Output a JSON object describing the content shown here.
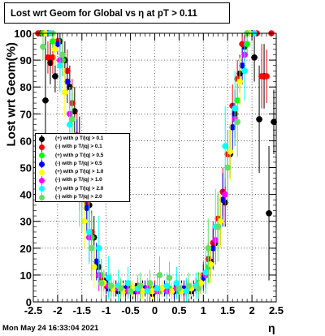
{
  "title": "Lost wrt Geom for Global vs  η at pT > 0.11",
  "footer": "Mon May 24 16:33:04 2021",
  "chart_data": {
    "type": "scatter",
    "xlabel": "η",
    "ylabel": "Lost wrt Geom(%)",
    "xlim": [
      -2.5,
      2.5
    ],
    "ylim": [
      0,
      100
    ],
    "x_ticks": [
      "-2.5",
      "-2",
      "-1.5",
      "-1",
      "-0.5",
      "0",
      "0.5",
      "1",
      "1.5",
      "2",
      "2.5"
    ],
    "y_ticks": [
      "0",
      "10",
      "20",
      "30",
      "40",
      "50",
      "60",
      "70",
      "80",
      "90",
      "100"
    ],
    "grid": true,
    "legend_position": "left-middle",
    "series": [
      {
        "name": "(+) with p T/|q| > 0.1",
        "color": "#000000",
        "x": [
          -2.35,
          -2.25,
          -2.15,
          -2.05,
          -1.95,
          -1.85,
          -1.75,
          -1.65,
          -1.55,
          -1.45,
          -1.35,
          -1.25,
          -1.15,
          -1.05,
          -0.95,
          -0.85,
          -0.75,
          -0.65,
          -0.55,
          -0.45,
          -0.35,
          -0.25,
          -0.15,
          -0.05,
          0.05,
          0.15,
          0.25,
          0.35,
          0.45,
          0.55,
          0.65,
          0.75,
          0.85,
          0.95,
          1.05,
          1.15,
          1.25,
          1.35,
          1.45,
          1.55,
          1.65,
          1.75,
          1.85,
          1.95,
          2.05,
          2.15,
          2.25,
          2.35,
          2.45
        ],
        "y": [
          100,
          75,
          89,
          84,
          97,
          90,
          80,
          71,
          60,
          48,
          36,
          24,
          13,
          8,
          5,
          5,
          4,
          5,
          5,
          4,
          6,
          5,
          5,
          3,
          5,
          5,
          4,
          4,
          5,
          5,
          5,
          4,
          6,
          7,
          10,
          15,
          22,
          30,
          37,
          55,
          70,
          85,
          95,
          100,
          91,
          68,
          84,
          33,
          67
        ],
        "yerr": [
          0,
          25,
          8,
          6,
          4,
          7,
          8,
          9,
          9,
          9,
          8,
          8,
          6,
          4,
          3,
          3,
          3,
          3,
          3,
          3,
          3,
          3,
          3,
          3,
          3,
          3,
          3,
          3,
          3,
          3,
          3,
          3,
          3,
          4,
          5,
          6,
          8,
          9,
          9,
          9,
          9,
          7,
          5,
          0,
          9,
          20,
          12,
          25,
          12
        ]
      },
      {
        "name": "(-) with p T/|q| > 0.1",
        "color": "#ff0000",
        "x": [
          -2.4,
          -2.3,
          -2.2,
          -2.1,
          -2.0,
          -1.9,
          -1.8,
          -1.7,
          -1.6,
          -1.5,
          -1.4,
          -1.3,
          -1.2,
          -1.1,
          -1.0,
          -0.9,
          -0.8,
          -0.7,
          -0.6,
          -0.5,
          -0.4,
          -0.3,
          -0.2,
          -0.1,
          0.0,
          0.1,
          0.2,
          0.3,
          0.4,
          0.5,
          0.6,
          0.7,
          0.8,
          0.9,
          1.0,
          1.1,
          1.2,
          1.3,
          1.4,
          1.5,
          1.6,
          1.7,
          1.8,
          1.9,
          2.0,
          2.1,
          2.2,
          2.3,
          2.4
        ],
        "y": [
          100,
          100,
          91,
          91,
          97,
          92,
          86,
          74,
          62,
          50,
          37,
          26,
          15,
          9,
          6,
          5,
          5,
          5,
          4,
          5,
          4,
          5,
          5,
          4,
          5,
          4,
          5,
          5,
          4,
          5,
          4,
          5,
          5,
          7,
          10,
          16,
          22,
          31,
          41,
          55,
          73,
          83,
          96,
          100,
          100,
          100,
          84,
          84,
          100
        ],
        "yerr": [
          0,
          0,
          6,
          6,
          3,
          5,
          8,
          9,
          9,
          9,
          8,
          8,
          6,
          4,
          3,
          3,
          3,
          3,
          3,
          3,
          3,
          3,
          3,
          3,
          3,
          3,
          3,
          3,
          3,
          3,
          3,
          3,
          3,
          4,
          5,
          6,
          8,
          9,
          9,
          9,
          8,
          7,
          4,
          0,
          0,
          0,
          12,
          10,
          0
        ]
      },
      {
        "name": "(+) with p T/|q| > 0.5",
        "color": "#00ff00",
        "x": [
          -2.3,
          -2.1,
          -1.9,
          -1.7,
          -1.5,
          -1.3,
          -1.1,
          -0.9,
          -0.7,
          -0.5,
          -0.3,
          -0.1,
          0.1,
          0.3,
          0.5,
          0.7,
          0.9,
          1.1,
          1.3,
          1.5,
          1.7,
          1.9
        ],
        "y": [
          100,
          97,
          90,
          68,
          45,
          24,
          10,
          6,
          5,
          4,
          4,
          5,
          4,
          5,
          4,
          5,
          7,
          13,
          28,
          50,
          75,
          96
        ],
        "yerr": [
          0,
          3,
          6,
          10,
          10,
          9,
          6,
          4,
          3,
          3,
          3,
          3,
          3,
          3,
          3,
          3,
          4,
          6,
          9,
          10,
          9,
          4
        ]
      },
      {
        "name": "(-) with p T/|q| > 0.5",
        "color": "#0000ff",
        "x": [
          -2.2,
          -2.0,
          -1.8,
          -1.6,
          -1.4,
          -1.2,
          -1.0,
          -0.8,
          -0.6,
          -0.4,
          -0.2,
          0.0,
          0.2,
          0.4,
          0.6,
          0.8,
          1.0,
          1.2,
          1.4,
          1.6,
          1.8,
          2.0
        ],
        "y": [
          100,
          96,
          82,
          58,
          35,
          15,
          7,
          5,
          5,
          4,
          5,
          4,
          5,
          4,
          5,
          5,
          9,
          20,
          38,
          65,
          88,
          100
        ],
        "yerr": [
          0,
          4,
          8,
          10,
          9,
          7,
          4,
          3,
          3,
          3,
          3,
          3,
          3,
          3,
          3,
          3,
          5,
          8,
          10,
          9,
          7,
          0
        ]
      },
      {
        "name": "(+) with p T/|q| > 1.0",
        "color": "#ffff00",
        "x": [
          -2.25,
          -2.05,
          -1.85,
          -1.65,
          -1.45,
          -1.25,
          -1.05,
          -0.85,
          -0.65,
          -0.45,
          -0.25,
          -0.05,
          0.15,
          0.35,
          0.55,
          0.75,
          0.95,
          1.15,
          1.35,
          1.55,
          1.75,
          1.95
        ],
        "y": [
          100,
          94,
          78,
          52,
          30,
          13,
          7,
          5,
          4,
          5,
          4,
          4,
          5,
          4,
          4,
          5,
          7,
          14,
          30,
          56,
          82,
          100
        ],
        "yerr": [
          0,
          6,
          9,
          11,
          10,
          8,
          5,
          4,
          3,
          3,
          3,
          3,
          3,
          3,
          3,
          3,
          4,
          7,
          10,
          11,
          9,
          0
        ]
      },
      {
        "name": "(-) with p T/|q| > 1.0",
        "color": "#ff00ff",
        "x": [
          -2.15,
          -1.95,
          -1.75,
          -1.55,
          -1.35,
          -1.15,
          -0.95,
          -0.75,
          -0.55,
          -0.35,
          -0.15,
          0.05,
          0.25,
          0.45,
          0.65,
          0.85,
          1.05,
          1.25,
          1.45,
          1.65,
          1.85,
          2.05
        ],
        "y": [
          100,
          90,
          70,
          45,
          24,
          10,
          6,
          5,
          4,
          4,
          5,
          4,
          4,
          5,
          4,
          6,
          10,
          23,
          40,
          68,
          92,
          100
        ],
        "yerr": [
          0,
          7,
          10,
          11,
          9,
          6,
          4,
          3,
          3,
          3,
          3,
          3,
          3,
          3,
          3,
          3,
          5,
          9,
          11,
          10,
          6,
          0
        ]
      },
      {
        "name": "(+) with p T/|q| > 2.0",
        "color": "#00ffff",
        "x": [
          -2.15,
          -1.95,
          -1.75,
          -1.55,
          -1.35,
          -1.15,
          -0.95,
          -0.75,
          -0.55,
          -0.35,
          -0.15,
          0.05,
          0.25,
          0.45,
          0.65,
          0.85,
          1.05,
          1.25,
          1.45,
          1.65,
          1.85,
          2.05
        ],
        "y": [
          100,
          88,
          66,
          42,
          26,
          20,
          9,
          6,
          7,
          5,
          4,
          5,
          6,
          7,
          4,
          6,
          11,
          28,
          58,
          72,
          86,
          100
        ],
        "yerr": [
          0,
          10,
          14,
          14,
          12,
          12,
          8,
          6,
          6,
          5,
          5,
          5,
          5,
          6,
          5,
          5,
          8,
          14,
          15,
          14,
          11,
          0
        ]
      },
      {
        "name": "(-) with p T/|q| > 2.0",
        "color": "#66dd66",
        "x": [
          -2.3,
          -2.1,
          -1.9,
          -1.7,
          -1.5,
          -1.3,
          -1.1,
          -0.9,
          -0.7,
          -0.5,
          -0.3,
          -0.1,
          0.1,
          0.3,
          0.5,
          0.7,
          0.9,
          1.1,
          1.3,
          1.5,
          1.7,
          1.9
        ],
        "y": [
          95,
          100,
          92,
          68,
          40,
          20,
          7,
          6,
          5,
          4,
          6,
          7,
          10,
          9,
          5,
          6,
          5,
          20,
          28,
          50,
          67,
          100
        ],
        "yerr": [
          5,
          0,
          7,
          12,
          14,
          12,
          7,
          5,
          4,
          4,
          5,
          5,
          7,
          6,
          5,
          5,
          5,
          11,
          13,
          14,
          13,
          0
        ]
      }
    ]
  }
}
